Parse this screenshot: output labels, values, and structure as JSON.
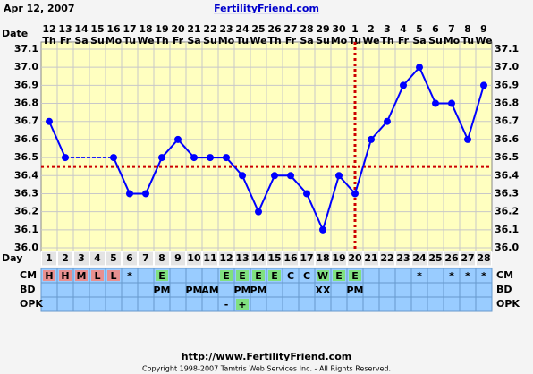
{
  "header": {
    "date": "Apr 12, 2007",
    "site": "FertilityFriend.com"
  },
  "chart_data": {
    "type": "line",
    "date_label": "Date",
    "dates": [
      "12",
      "13",
      "14",
      "15",
      "16",
      "17",
      "18",
      "19",
      "20",
      "21",
      "22",
      "23",
      "24",
      "25",
      "26",
      "27",
      "28",
      "29",
      "30",
      "1",
      "2",
      "3",
      "4",
      "5",
      "6",
      "7",
      "8",
      "9"
    ],
    "weekdays": [
      "Th",
      "Fr",
      "Sa",
      "Su",
      "Mo",
      "Tu",
      "We",
      "Th",
      "Fr",
      "Sa",
      "Su",
      "Mo",
      "Tu",
      "We",
      "Th",
      "Fr",
      "Sa",
      "Su",
      "Mo",
      "Tu",
      "We",
      "Th",
      "Fr",
      "Sa",
      "Su",
      "Mo",
      "Tu",
      "We"
    ],
    "day_label": "Day",
    "days": [
      1,
      2,
      3,
      4,
      5,
      6,
      7,
      8,
      9,
      10,
      11,
      12,
      13,
      14,
      15,
      16,
      17,
      18,
      19,
      20,
      21,
      22,
      23,
      24,
      25,
      26,
      27,
      28
    ],
    "values": [
      36.7,
      36.5,
      null,
      null,
      36.5,
      36.3,
      36.3,
      36.5,
      36.6,
      36.5,
      36.5,
      36.5,
      36.4,
      36.2,
      36.4,
      36.4,
      36.3,
      36.1,
      36.4,
      36.3,
      36.6,
      36.7,
      36.9,
      37.0,
      36.8,
      36.8,
      36.6,
      36.9
    ],
    "color": "#0000ff",
    "ylim": [
      36.0,
      37.1
    ],
    "yticks": [
      {
        "value": 36.0,
        "label": "36.0"
      },
      36.1,
      36.2,
      36.3,
      36.4,
      36.5,
      36.6,
      36.7,
      36.8,
      36.9,
      {
        "value": 37.0,
        "label": "37.0"
      },
      37.1
    ],
    "grid": true,
    "coverline": 36.45,
    "ovulation_day": 20,
    "marker_color": "#cc0000",
    "rows": [
      {
        "label": "CM",
        "cells": [
          "H",
          "H",
          "M",
          "L",
          "L",
          "*",
          null,
          "E",
          null,
          null,
          null,
          "E",
          "E",
          "E",
          "E",
          "C",
          "C",
          "W",
          "E",
          "E",
          null,
          null,
          null,
          "*",
          null,
          "*",
          "*",
          "*"
        ],
        "colors": [
          "#e89090",
          "#e89090",
          "#e89090",
          "#e89090",
          "#e89090",
          null,
          null,
          "#80e080",
          null,
          null,
          null,
          "#80e080",
          "#80e080",
          "#80e080",
          "#80e080",
          null,
          null,
          "#80e080",
          "#80e080",
          "#80e080",
          null,
          null,
          null,
          null,
          null,
          null,
          null,
          null
        ]
      },
      {
        "label": "BD",
        "cells": [
          null,
          null,
          null,
          null,
          null,
          null,
          null,
          "PM",
          null,
          "PM",
          "AM",
          null,
          "PM",
          "PM",
          null,
          null,
          null,
          "XX",
          null,
          "PM",
          null,
          null,
          null,
          null,
          null,
          null,
          null,
          null
        ]
      },
      {
        "label": "OPK",
        "cells": [
          null,
          null,
          null,
          null,
          null,
          null,
          null,
          null,
          null,
          null,
          null,
          "-",
          "+",
          null,
          null,
          null,
          null,
          null,
          null,
          null,
          null,
          null,
          null,
          null,
          null,
          null,
          null,
          null
        ],
        "colors": [
          null,
          null,
          null,
          null,
          null,
          null,
          null,
          null,
          null,
          null,
          null,
          null,
          "#80e080",
          null,
          null,
          null,
          null,
          null,
          null,
          null,
          null,
          null,
          null,
          null,
          null,
          null,
          null,
          null
        ]
      }
    ]
  },
  "footer": {
    "url": "http://www.FertilityFriend.com",
    "copyright": "Copyright 1998-2007 Tamtris Web Services Inc. - All Rights Reserved."
  }
}
